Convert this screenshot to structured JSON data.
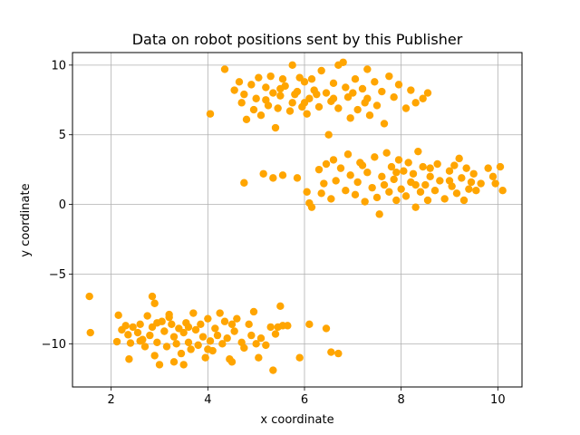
{
  "chart_data": {
    "type": "scatter",
    "title": "Data on robot positions sent by this Publisher",
    "xlabel": "x coordinate",
    "ylabel": "y coordinate",
    "xlim": [
      1.2,
      10.5
    ],
    "ylim": [
      -13.1,
      10.9
    ],
    "xticks": [
      2,
      4,
      6,
      8,
      10
    ],
    "yticks": [
      -10,
      -5,
      0,
      5,
      10
    ],
    "grid": true,
    "marker_color": "#ffa500",
    "series": [
      {
        "points": [
          [
            1.55,
            -6.6
          ],
          [
            1.57,
            -9.2
          ],
          [
            2.12,
            -9.85
          ],
          [
            2.22,
            -9.0
          ],
          [
            2.15,
            -7.95
          ],
          [
            2.3,
            -8.7
          ],
          [
            2.35,
            -9.35
          ],
          [
            2.4,
            -9.95
          ],
          [
            2.37,
            -11.1
          ],
          [
            2.45,
            -8.8
          ],
          [
            2.55,
            -9.2
          ],
          [
            2.6,
            -8.6
          ],
          [
            2.65,
            -9.7
          ],
          [
            2.7,
            -10.2
          ],
          [
            2.75,
            -8.0
          ],
          [
            2.8,
            -9.4
          ],
          [
            2.85,
            -8.8
          ],
          [
            2.85,
            -6.6
          ],
          [
            2.9,
            -7.1
          ],
          [
            2.95,
            -9.9
          ],
          [
            2.9,
            -10.85
          ],
          [
            3.0,
            -11.5
          ],
          [
            3.05,
            -8.4
          ],
          [
            3.1,
            -9.1
          ],
          [
            3.15,
            -10.2
          ],
          [
            3.2,
            -7.9
          ],
          [
            3.25,
            -8.6
          ],
          [
            3.3,
            -9.5
          ],
          [
            3.3,
            -11.3
          ],
          [
            3.35,
            -10.0
          ],
          [
            3.4,
            -8.9
          ],
          [
            3.45,
            -10.7
          ],
          [
            3.5,
            -9.2
          ],
          [
            3.5,
            -11.5
          ],
          [
            3.55,
            -8.5
          ],
          [
            3.6,
            -9.9
          ],
          [
            3.65,
            -10.4
          ],
          [
            3.7,
            -7.8
          ],
          [
            3.75,
            -9.0
          ],
          [
            3.8,
            -10.1
          ],
          [
            3.85,
            -8.6
          ],
          [
            3.9,
            -9.5
          ],
          [
            3.95,
            -11.0
          ],
          [
            4.0,
            -8.2
          ],
          [
            4.05,
            -9.8
          ],
          [
            4.1,
            -10.5
          ],
          [
            4.15,
            -8.9
          ],
          [
            4.2,
            -9.4
          ],
          [
            4.25,
            -7.8
          ],
          [
            4.3,
            -10.0
          ],
          [
            4.35,
            -8.4
          ],
          [
            4.4,
            -9.6
          ],
          [
            4.45,
            -11.1
          ],
          [
            4.5,
            -11.3
          ],
          [
            4.55,
            -9.1
          ],
          [
            4.6,
            -8.2
          ],
          [
            4.7,
            -9.9
          ],
          [
            4.75,
            -10.3
          ],
          [
            4.85,
            -8.6
          ],
          [
            4.9,
            -9.4
          ],
          [
            4.95,
            -7.7
          ],
          [
            5.0,
            -10.0
          ],
          [
            5.05,
            -11.0
          ],
          [
            5.1,
            -9.6
          ],
          [
            5.2,
            -10.1
          ],
          [
            5.3,
            -8.8
          ],
          [
            5.35,
            -11.9
          ],
          [
            5.4,
            -9.3
          ],
          [
            5.45,
            -8.8
          ],
          [
            5.5,
            -7.3
          ],
          [
            5.55,
            -8.7
          ],
          [
            5.65,
            -8.7
          ],
          [
            5.9,
            -11.0
          ],
          [
            6.1,
            -8.6
          ],
          [
            6.45,
            -8.9
          ],
          [
            6.55,
            -10.6
          ],
          [
            6.7,
            -10.7
          ],
          [
            3.2,
            -8.1
          ],
          [
            2.6,
            -9.8
          ],
          [
            3.6,
            -8.8
          ],
          [
            4.0,
            -10.4
          ],
          [
            4.5,
            -8.6
          ],
          [
            2.95,
            -8.5
          ],
          [
            4.05,
            6.5
          ],
          [
            4.35,
            9.7
          ],
          [
            4.55,
            8.2
          ],
          [
            4.65,
            8.8
          ],
          [
            4.7,
            7.3
          ],
          [
            4.75,
            7.9
          ],
          [
            4.8,
            6.1
          ],
          [
            4.9,
            8.6
          ],
          [
            4.95,
            6.8
          ],
          [
            5.0,
            7.6
          ],
          [
            5.05,
            9.1
          ],
          [
            5.1,
            6.4
          ],
          [
            5.2,
            8.4
          ],
          [
            5.25,
            7.1
          ],
          [
            5.3,
            9.2
          ],
          [
            5.35,
            8.0
          ],
          [
            5.4,
            5.5
          ],
          [
            5.45,
            6.9
          ],
          [
            5.5,
            7.8
          ],
          [
            5.55,
            9.0
          ],
          [
            5.6,
            8.5
          ],
          [
            5.7,
            6.7
          ],
          [
            5.75,
            7.3
          ],
          [
            5.75,
            10.0
          ],
          [
            5.85,
            8.1
          ],
          [
            5.9,
            9.1
          ],
          [
            5.95,
            7.0
          ],
          [
            6.0,
            8.8
          ],
          [
            6.05,
            6.5
          ],
          [
            6.1,
            7.6
          ],
          [
            6.15,
            9.0
          ],
          [
            6.2,
            8.2
          ],
          [
            6.3,
            7.0
          ],
          [
            6.35,
            9.6
          ],
          [
            6.45,
            8.0
          ],
          [
            6.5,
            5.0
          ],
          [
            6.55,
            7.4
          ],
          [
            6.6,
            8.7
          ],
          [
            6.7,
            6.9
          ],
          [
            6.7,
            10.0
          ],
          [
            6.8,
            10.2
          ],
          [
            6.85,
            8.4
          ],
          [
            6.9,
            7.7
          ],
          [
            6.95,
            6.2
          ],
          [
            7.05,
            9.0
          ],
          [
            7.1,
            6.8
          ],
          [
            7.2,
            8.3
          ],
          [
            7.25,
            7.3
          ],
          [
            7.3,
            9.7
          ],
          [
            7.35,
            6.4
          ],
          [
            7.45,
            8.8
          ],
          [
            7.5,
            7.1
          ],
          [
            7.6,
            8.1
          ],
          [
            7.65,
            5.8
          ],
          [
            7.75,
            9.2
          ],
          [
            7.85,
            7.7
          ],
          [
            7.95,
            8.6
          ],
          [
            8.1,
            6.9
          ],
          [
            8.2,
            8.2
          ],
          [
            8.3,
            7.3
          ],
          [
            8.45,
            7.6
          ],
          [
            8.55,
            8.0
          ],
          [
            5.2,
            7.5
          ],
          [
            5.5,
            8.3
          ],
          [
            5.8,
            7.9
          ],
          [
            6.0,
            7.3
          ],
          [
            6.25,
            7.9
          ],
          [
            6.6,
            7.6
          ],
          [
            7.0,
            8.0
          ],
          [
            7.3,
            7.6
          ],
          [
            4.75,
            1.55
          ],
          [
            5.15,
            2.2
          ],
          [
            5.35,
            1.9
          ],
          [
            5.55,
            2.1
          ],
          [
            5.85,
            1.9
          ],
          [
            6.05,
            0.9
          ],
          [
            6.1,
            0.1
          ],
          [
            6.15,
            -0.2
          ],
          [
            6.3,
            2.5
          ],
          [
            6.35,
            0.8
          ],
          [
            6.4,
            1.5
          ],
          [
            6.45,
            2.9
          ],
          [
            6.55,
            0.4
          ],
          [
            6.6,
            3.2
          ],
          [
            6.65,
            1.7
          ],
          [
            6.75,
            2.6
          ],
          [
            6.85,
            1.0
          ],
          [
            6.9,
            3.6
          ],
          [
            6.95,
            2.1
          ],
          [
            7.05,
            0.7
          ],
          [
            7.1,
            1.6
          ],
          [
            7.15,
            3.0
          ],
          [
            7.25,
            0.2
          ],
          [
            7.3,
            2.3
          ],
          [
            7.4,
            1.2
          ],
          [
            7.45,
            3.4
          ],
          [
            7.5,
            0.5
          ],
          [
            7.55,
            -0.7
          ],
          [
            7.6,
            2.0
          ],
          [
            7.65,
            1.4
          ],
          [
            7.7,
            3.7
          ],
          [
            7.75,
            0.9
          ],
          [
            7.8,
            2.7
          ],
          [
            7.85,
            1.8
          ],
          [
            7.9,
            0.3
          ],
          [
            7.95,
            3.2
          ],
          [
            8.0,
            1.1
          ],
          [
            8.05,
            2.4
          ],
          [
            8.1,
            0.6
          ],
          [
            8.15,
            3.0
          ],
          [
            8.2,
            1.6
          ],
          [
            8.25,
            2.2
          ],
          [
            8.3,
            -0.2
          ],
          [
            8.35,
            3.8
          ],
          [
            8.4,
            0.9
          ],
          [
            8.45,
            2.7
          ],
          [
            8.5,
            1.4
          ],
          [
            8.55,
            0.3
          ],
          [
            8.6,
            2.0
          ],
          [
            8.7,
            1.0
          ],
          [
            8.75,
            2.9
          ],
          [
            8.8,
            1.7
          ],
          [
            8.9,
            0.4
          ],
          [
            9.0,
            2.4
          ],
          [
            9.05,
            1.3
          ],
          [
            9.1,
            2.8
          ],
          [
            9.15,
            0.8
          ],
          [
            9.2,
            3.3
          ],
          [
            9.25,
            1.9
          ],
          [
            9.3,
            0.3
          ],
          [
            9.35,
            2.6
          ],
          [
            9.4,
            1.1
          ],
          [
            9.45,
            1.6
          ],
          [
            9.5,
            2.2
          ],
          [
            9.55,
            1.0
          ],
          [
            9.65,
            1.5
          ],
          [
            9.8,
            2.6
          ],
          [
            9.9,
            2.0
          ],
          [
            9.95,
            1.5
          ],
          [
            10.05,
            2.7
          ],
          [
            10.1,
            1.0
          ],
          [
            7.2,
            2.8
          ],
          [
            8.6,
            2.6
          ],
          [
            7.9,
            2.3
          ],
          [
            8.3,
            1.4
          ],
          [
            9.0,
            1.7
          ]
        ]
      }
    ]
  }
}
